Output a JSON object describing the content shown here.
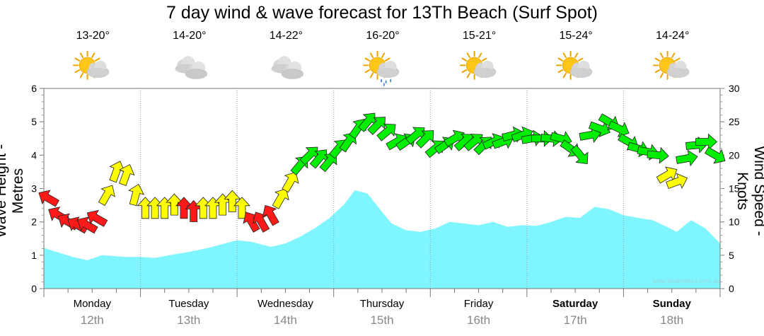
{
  "chart_data": {
    "type": "area",
    "title": "7 day wind & wave forecast for 13Th Beach (Surf Spot)",
    "ylabel": "Wave Height - Metres",
    "y2label": "Wind Speed - Knots",
    "ylim": [
      0,
      6
    ],
    "y2lim": [
      0,
      30
    ],
    "yticks": [
      "0",
      "1",
      "2",
      "3",
      "4",
      "5",
      "6"
    ],
    "y2ticks": [
      "0",
      "5",
      "10",
      "15",
      "20",
      "25",
      "30"
    ],
    "watermark": "www.seabreeze.com.au",
    "days": [
      {
        "name": "Monday",
        "date": "12th",
        "temp": "13-20°",
        "icon": "sun-cloud-icon",
        "bold": false
      },
      {
        "name": "Tuesday",
        "date": "13th",
        "temp": "14-20°",
        "icon": "cloud-icon",
        "bold": false
      },
      {
        "name": "Wednesday",
        "date": "14th",
        "temp": "14-22°",
        "icon": "cloud-icon",
        "bold": false
      },
      {
        "name": "Thursday",
        "date": "15th",
        "temp": "16-20°",
        "icon": "sun-cloud-rain-icon",
        "bold": false
      },
      {
        "name": "Friday",
        "date": "16th",
        "temp": "15-21°",
        "icon": "sun-cloud-icon",
        "bold": false
      },
      {
        "name": "Saturday",
        "date": "17th",
        "temp": "15-24°",
        "icon": "sun-cloud-icon",
        "bold": true
      },
      {
        "name": "Sunday",
        "date": "18th",
        "temp": "14-24°",
        "icon": "sun-cloud-icon",
        "bold": true
      }
    ],
    "wave_series": {
      "name": "Wave height (m)",
      "color": "#7ff6ff",
      "t": [
        0,
        0.13,
        0.3,
        0.45,
        0.6,
        0.85,
        1.0,
        1.15,
        1.3,
        1.5,
        1.7,
        2.0,
        2.15,
        2.35,
        2.5,
        2.65,
        2.8,
        2.95,
        3.1,
        3.22,
        3.35,
        3.5,
        3.6,
        3.75,
        3.9,
        4.05,
        4.2,
        4.35,
        4.5,
        4.65,
        4.8,
        4.95,
        5.1,
        5.25,
        5.4,
        5.55,
        5.7,
        5.85,
        6.0,
        6.15,
        6.3,
        6.45,
        6.55,
        6.7,
        6.85,
        7.0
      ],
      "values": [
        1.22,
        1.1,
        0.95,
        0.85,
        1.0,
        0.95,
        0.95,
        0.92,
        1.0,
        1.1,
        1.22,
        1.45,
        1.4,
        1.25,
        1.35,
        1.55,
        1.8,
        2.1,
        2.5,
        2.95,
        2.85,
        2.3,
        1.95,
        1.75,
        1.7,
        1.8,
        2.0,
        1.95,
        1.9,
        2.0,
        1.85,
        1.9,
        1.88,
        2.0,
        2.15,
        2.12,
        2.45,
        2.38,
        2.2,
        2.12,
        2.05,
        1.85,
        1.7,
        2.05,
        1.8,
        1.35
      ]
    },
    "wind_series": {
      "name": "Wind speed (knots)",
      "t": [
        0.0,
        0.1,
        0.2,
        0.3,
        0.4,
        0.5,
        0.6,
        0.7,
        0.8,
        0.9,
        1.0,
        1.1,
        1.2,
        1.3,
        1.4,
        1.5,
        1.6,
        1.7,
        1.8,
        1.9,
        2.0,
        2.1,
        2.2,
        2.3,
        2.4,
        2.5,
        2.6,
        2.7,
        2.8,
        2.9,
        3.0,
        3.1,
        3.2,
        3.3,
        3.4,
        3.5,
        3.6,
        3.7,
        3.8,
        3.9,
        4.0,
        4.1,
        4.2,
        4.3,
        4.4,
        4.5,
        4.6,
        4.7,
        4.8,
        4.9,
        5.0,
        5.1,
        5.2,
        5.3,
        5.4,
        5.5,
        5.6,
        5.7,
        5.8,
        5.9,
        6.0,
        6.1,
        6.2,
        6.3,
        6.4,
        6.5,
        6.6,
        6.7,
        6.8,
        6.9
      ],
      "values": [
        13.5,
        11,
        10,
        9.5,
        9.5,
        10.5,
        14,
        17.5,
        17,
        14,
        12,
        12,
        12,
        12.5,
        12,
        11.5,
        12,
        12,
        12.5,
        13,
        12,
        10,
        10,
        11,
        13.5,
        16,
        18.5,
        20,
        19.5,
        19,
        21,
        22,
        24,
        25,
        24.5,
        23.5,
        22,
        22,
        23,
        22.5,
        21,
        21.5,
        22.5,
        22,
        22,
        21.5,
        22,
        22,
        23,
        23,
        22.5,
        22.5,
        22.5,
        22.5,
        21,
        20,
        23,
        24,
        25,
        24,
        22,
        21,
        20.5,
        20,
        17,
        16,
        19.5,
        21.5,
        22,
        20
      ],
      "colors": [
        "red",
        "red",
        "red",
        "red",
        "red",
        "red",
        "yellow",
        "yellow",
        "yellow",
        "yellow",
        "yellow",
        "yellow",
        "yellow",
        "yellow",
        "red",
        "red",
        "yellow",
        "yellow",
        "yellow",
        "yellow",
        "yellow",
        "red",
        "red",
        "red",
        "yellow",
        "yellow",
        "green",
        "green",
        "green",
        "green",
        "green",
        "green",
        "green",
        "green",
        "green",
        "green",
        "green",
        "green",
        "green",
        "green",
        "green",
        "green",
        "green",
        "green",
        "green",
        "green",
        "green",
        "green",
        "green",
        "green",
        "green",
        "green",
        "green",
        "green",
        "green",
        "green",
        "green",
        "green",
        "green",
        "green",
        "green",
        "green",
        "green",
        "green",
        "yellow",
        "yellow",
        "green",
        "green",
        "green",
        "green"
      ],
      "direction_deg": [
        300,
        300,
        300,
        300,
        300,
        300,
        30,
        20,
        20,
        15,
        0,
        0,
        0,
        0,
        0,
        0,
        0,
        0,
        0,
        0,
        0,
        330,
        330,
        330,
        30,
        30,
        40,
        45,
        40,
        40,
        40,
        35,
        35,
        40,
        45,
        50,
        60,
        55,
        50,
        45,
        50,
        55,
        60,
        50,
        50,
        45,
        65,
        70,
        75,
        70,
        80,
        90,
        95,
        105,
        125,
        140,
        80,
        110,
        120,
        115,
        120,
        105,
        100,
        95,
        60,
        70,
        80,
        85,
        90,
        120
      ]
    },
    "palette": {
      "red": "#ff1a1a",
      "yellow": "#ffff00",
      "green": "#00ee00"
    }
  }
}
